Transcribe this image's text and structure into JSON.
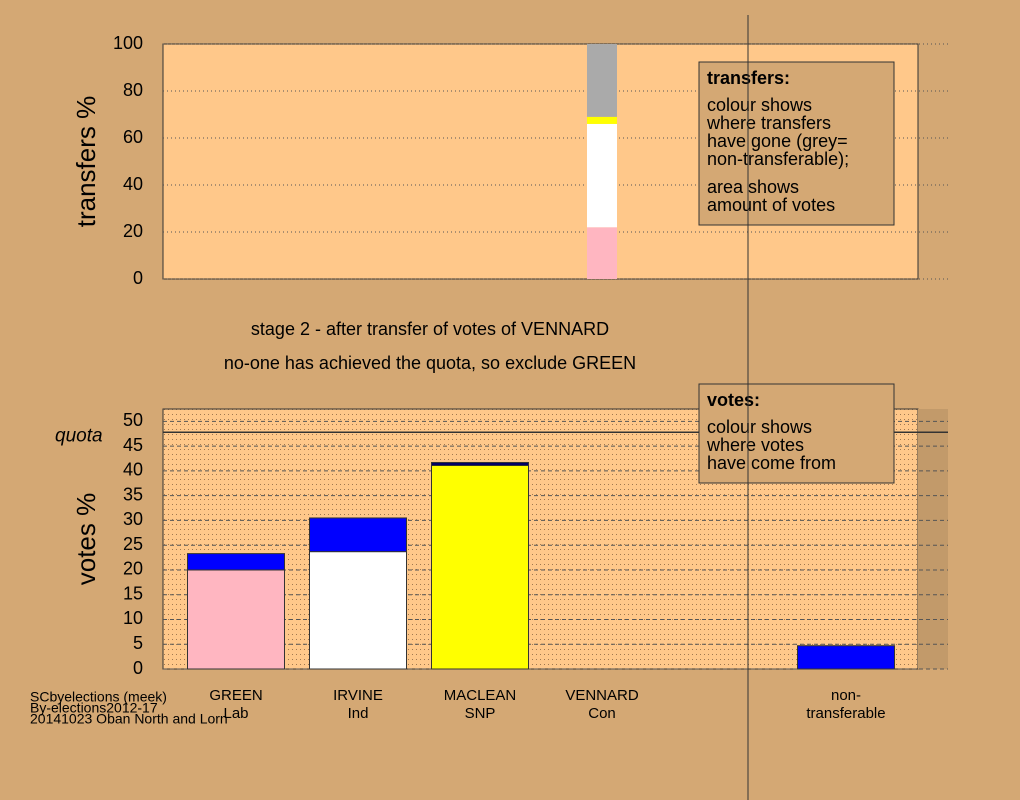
{
  "chart_data": [
    {
      "type": "stacked_bar",
      "ylabel": "transfers %",
      "ylim": [
        0,
        100
      ],
      "yticks": [
        0,
        20,
        40,
        60,
        80,
        100
      ],
      "grid": "dotted",
      "series": [
        {
          "color": "#ffb6c1",
          "values": [
            null,
            null,
            null,
            22,
            null,
            null
          ]
        },
        {
          "color": "#ffffff",
          "values": [
            null,
            null,
            null,
            44,
            null,
            null
          ]
        },
        {
          "color": "#ffff00",
          "values": [
            null,
            null,
            null,
            3,
            null,
            null
          ]
        },
        {
          "color": "#aaaaaa",
          "values": [
            null,
            null,
            null,
            31,
            null,
            null
          ]
        }
      ],
      "annotation": {
        "title": "transfers:",
        "paragraphs": [
          [
            "colour shows",
            "where transfers",
            "have gone (grey=",
            "non-transferable);"
          ],
          [
            "area shows",
            "amount of votes"
          ]
        ]
      }
    },
    {
      "type": "stacked_bar",
      "ylabel": "votes %",
      "ylim": [
        0,
        52.5
      ],
      "yticks": [
        0,
        5,
        10,
        15,
        20,
        25,
        30,
        35,
        40,
        45,
        50
      ],
      "grid": "dashed",
      "categories": [
        [
          "GREEN",
          "Lab"
        ],
        [
          "IRVINE",
          "Ind"
        ],
        [
          "MACLEAN",
          "SNP"
        ],
        [
          "VENNARD",
          "Con"
        ],
        null,
        [
          "non-",
          "transferable"
        ]
      ],
      "quota": {
        "value": 47.8,
        "label": "quota"
      },
      "series": [
        {
          "color": "#ffb6c1",
          "values": [
            20,
            null,
            null,
            null,
            null,
            null
          ]
        },
        {
          "color": "#ffffff",
          "values": [
            null,
            23.7,
            null,
            null,
            null,
            null
          ]
        },
        {
          "color": "#ffff00",
          "values": [
            null,
            null,
            41.1,
            null,
            null,
            null
          ]
        },
        {
          "color": "#0000ff",
          "values": [
            3.3,
            6.8,
            null,
            null,
            null,
            4.7
          ]
        },
        {
          "color": "#000066",
          "values": [
            null,
            null,
            0.6,
            null,
            null,
            null
          ]
        }
      ],
      "annotation": {
        "title": "votes:",
        "paragraphs": [
          [
            "colour shows",
            "where votes",
            "have come from"
          ]
        ]
      }
    }
  ],
  "notes": [
    "stage 2 - after transfer of votes of VENNARD",
    "no-one has achieved the quota, so exclude GREEN"
  ],
  "footer": [
    "SCbyelections (meek)",
    "By-elections2012-17",
    "20141023 Oban North and Lorn"
  ]
}
